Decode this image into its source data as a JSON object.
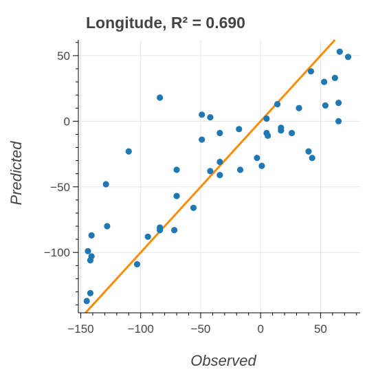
{
  "chart_data": {
    "type": "scatter",
    "title": "Longitude, R² = 0.690",
    "xlabel": "Observed",
    "ylabel": "Predicted",
    "xlim": [
      -152,
      83
    ],
    "ylim": [
      -146,
      62
    ],
    "x_ticks": [
      -150,
      -100,
      -50,
      0,
      50
    ],
    "y_ticks": [
      -100,
      -50,
      0,
      50
    ],
    "x_tick_labels": [
      "−150",
      "−100",
      "−50",
      "0",
      "50"
    ],
    "y_tick_labels": [
      "−100",
      "−50",
      "0",
      "50"
    ],
    "grid": true,
    "point_color": "#1f77b4",
    "line_color": "#ff8c00",
    "reference_line": {
      "label": "y = x"
    },
    "points": [
      {
        "x": -145,
        "y": -137
      },
      {
        "x": -142,
        "y": -131
      },
      {
        "x": -144,
        "y": -99
      },
      {
        "x": -142,
        "y": -106
      },
      {
        "x": -141,
        "y": -103
      },
      {
        "x": -141,
        "y": -87
      },
      {
        "x": -128,
        "y": -80
      },
      {
        "x": -129,
        "y": -48
      },
      {
        "x": -110,
        "y": -23
      },
      {
        "x": -103,
        "y": -109
      },
      {
        "x": -94,
        "y": -88
      },
      {
        "x": -84,
        "y": -83
      },
      {
        "x": -84,
        "y": -81
      },
      {
        "x": -84,
        "y": 18
      },
      {
        "x": -72,
        "y": -83
      },
      {
        "x": -70,
        "y": -57
      },
      {
        "x": -70,
        "y": -37
      },
      {
        "x": -56,
        "y": -66
      },
      {
        "x": -49,
        "y": 5
      },
      {
        "x": -49,
        "y": -14
      },
      {
        "x": -42,
        "y": 3
      },
      {
        "x": -42,
        "y": -38
      },
      {
        "x": -34,
        "y": -9
      },
      {
        "x": -34,
        "y": -31
      },
      {
        "x": -34,
        "y": -41
      },
      {
        "x": -18,
        "y": -6
      },
      {
        "x": -17,
        "y": -37
      },
      {
        "x": -3,
        "y": -28
      },
      {
        "x": 1,
        "y": -34
      },
      {
        "x": 5,
        "y": 2
      },
      {
        "x": 5,
        "y": -9
      },
      {
        "x": 6,
        "y": -11
      },
      {
        "x": 14,
        "y": 13
      },
      {
        "x": 17,
        "y": -5
      },
      {
        "x": 17,
        "y": -7
      },
      {
        "x": 26,
        "y": -9
      },
      {
        "x": 32,
        "y": 10
      },
      {
        "x": 40,
        "y": -23
      },
      {
        "x": 42,
        "y": 38
      },
      {
        "x": 43,
        "y": -28
      },
      {
        "x": 53,
        "y": 30
      },
      {
        "x": 54,
        "y": 12
      },
      {
        "x": 62,
        "y": 33
      },
      {
        "x": 65,
        "y": 14
      },
      {
        "x": 65,
        "y": 0
      },
      {
        "x": 66,
        "y": 53
      },
      {
        "x": 73,
        "y": 49
      }
    ]
  }
}
